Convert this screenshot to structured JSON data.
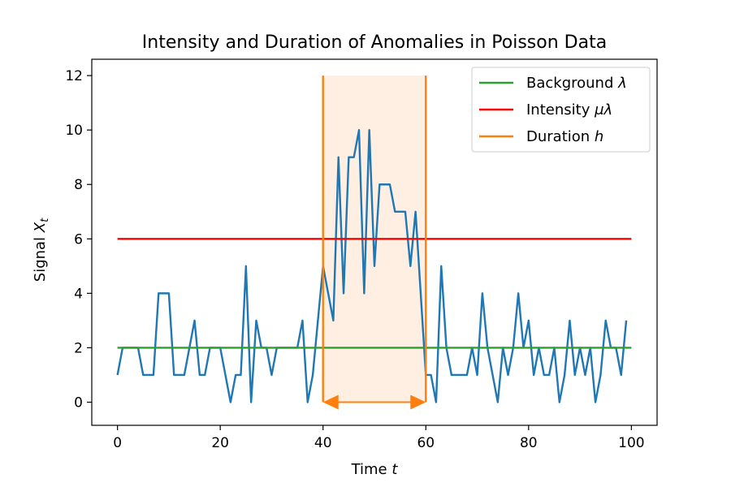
{
  "chart_data": {
    "type": "line",
    "title": "Intensity and Duration of Anomalies in Poisson Data",
    "xlabel": "Time t",
    "ylabel": "Signal X_t",
    "xlim": [
      -5,
      105
    ],
    "ylim": [
      -0.85,
      12.6
    ],
    "xticks": [
      0,
      20,
      40,
      60,
      80,
      100
    ],
    "yticks": [
      0,
      2,
      4,
      6,
      8,
      10,
      12
    ],
    "grid": false,
    "legend_position": "top-right",
    "series": [
      {
        "name": "",
        "kind": "signal",
        "color": "#1f77b4",
        "x": [
          0,
          1,
          2,
          3,
          4,
          5,
          6,
          7,
          8,
          9,
          10,
          11,
          12,
          13,
          14,
          15,
          16,
          17,
          18,
          19,
          20,
          21,
          22,
          23,
          24,
          25,
          26,
          27,
          28,
          29,
          30,
          31,
          32,
          33,
          34,
          35,
          36,
          37,
          38,
          39,
          40,
          41,
          42,
          43,
          44,
          45,
          46,
          47,
          48,
          49,
          50,
          51,
          52,
          53,
          54,
          55,
          56,
          57,
          58,
          59,
          60,
          61,
          62,
          63,
          64,
          65,
          66,
          67,
          68,
          69,
          70,
          71,
          72,
          73,
          74,
          75,
          76,
          77,
          78,
          79,
          80,
          81,
          82,
          83,
          84,
          85,
          86,
          87,
          88,
          89,
          90,
          91,
          92,
          93,
          94,
          95,
          96,
          97,
          98,
          99
        ],
        "y": [
          1,
          2,
          2,
          2,
          2,
          1,
          1,
          1,
          4,
          4,
          4,
          1,
          1,
          1,
          2,
          3,
          1,
          1,
          2,
          2,
          2,
          1,
          0,
          1,
          1,
          5,
          0,
          3,
          2,
          2,
          1,
          2,
          2,
          2,
          2,
          2,
          3,
          0,
          1,
          3,
          5,
          4,
          3,
          9,
          4,
          9,
          9,
          10,
          4,
          10,
          5,
          8,
          8,
          8,
          7,
          7,
          7,
          5,
          7,
          4,
          1,
          1,
          0,
          5,
          2,
          1,
          1,
          1,
          1,
          2,
          1,
          4,
          2,
          1,
          0,
          2,
          1,
          2,
          4,
          2,
          3,
          1,
          2,
          1,
          1,
          2,
          0,
          1,
          3,
          1,
          2,
          1,
          2,
          0,
          1,
          3,
          2,
          2,
          1,
          3
        ]
      },
      {
        "name": "Background λ",
        "kind": "hline",
        "color": "#2ca02c",
        "x": [
          0,
          100
        ],
        "y": [
          2,
          2
        ]
      },
      {
        "name": "Intensity μλ",
        "kind": "hline",
        "color": "#ff0000",
        "x": [
          0,
          100
        ],
        "y": [
          6,
          6
        ]
      },
      {
        "name": "Duration h",
        "kind": "duration",
        "color": "#ff7f0e",
        "start": 40,
        "end": 60,
        "top": 12
      }
    ],
    "legend": [
      {
        "name_main": "Background ",
        "name_math": "λ",
        "color": "#2ca02c"
      },
      {
        "name_main": "Intensity ",
        "name_math": "μλ",
        "color": "#ff0000"
      },
      {
        "name_main": "Duration ",
        "name_math": "h",
        "color": "#ff7f0e"
      }
    ],
    "title_parts": {
      "text": "Intensity and Duration of Anomalies in Poisson Data"
    },
    "xlabel_parts": {
      "main": "Time ",
      "math": "t"
    },
    "ylabel_parts": {
      "main": "Signal ",
      "math": "X",
      "sub": "t"
    }
  }
}
